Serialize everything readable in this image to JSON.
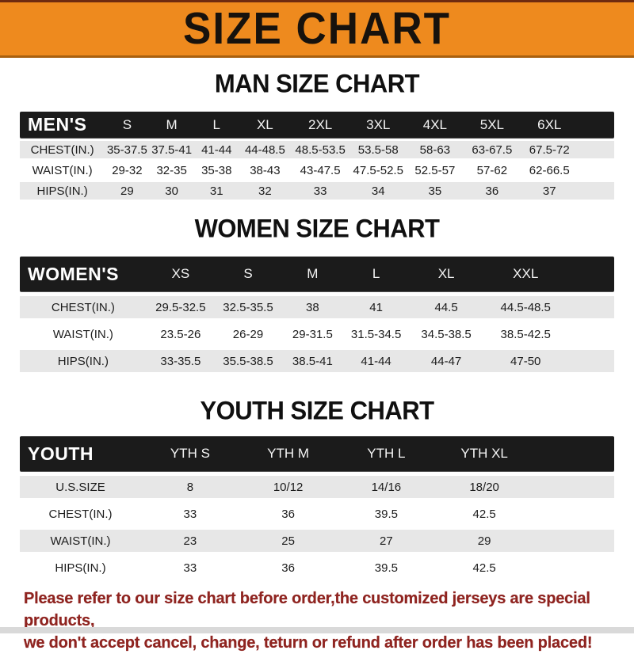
{
  "header": {
    "title": "SIZE CHART"
  },
  "colors": {
    "accent": "#EE8A1E",
    "band": "#1B1B1B",
    "row_gray": "#E7E7E7",
    "footer_red": "#8F2420"
  },
  "tables": [
    {
      "title": "MAN SIZE CHART",
      "band_label": "MEN'S",
      "columns": [
        "S",
        "M",
        "L",
        "XL",
        "2XL",
        "3XL",
        "4XL",
        "5XL",
        "6XL"
      ],
      "rows": [
        {
          "label": "CHEST(IN.)",
          "values": [
            "35-37.5",
            "37.5-41",
            "41-44",
            "44-48.5",
            "48.5-53.5",
            "53.5-58",
            "58-63",
            "63-67.5",
            "67.5-72"
          ]
        },
        {
          "label": "WAIST(IN.)",
          "values": [
            "29-32",
            "32-35",
            "35-38",
            "38-43",
            "43-47.5",
            "47.5-52.5",
            "52.5-57",
            "57-62",
            "62-66.5"
          ]
        },
        {
          "label": "HIPS(IN.)",
          "values": [
            "29",
            "30",
            "31",
            "32",
            "33",
            "34",
            "35",
            "36",
            "37"
          ]
        }
      ]
    },
    {
      "title": "WOMEN SIZE CHART",
      "band_label": "WOMEN'S",
      "columns": [
        "XS",
        "S",
        "M",
        "L",
        "XL",
        "XXL"
      ],
      "rows": [
        {
          "label": "CHEST(IN.)",
          "values": [
            "29.5-32.5",
            "32.5-35.5",
            "38",
            "41",
            "44.5",
            "44.5-48.5"
          ]
        },
        {
          "label": "WAIST(IN.)",
          "values": [
            "23.5-26",
            "26-29",
            "29-31.5",
            "31.5-34.5",
            "34.5-38.5",
            "38.5-42.5"
          ]
        },
        {
          "label": "HIPS(IN.)",
          "values": [
            "33-35.5",
            "35.5-38.5",
            "38.5-41",
            "41-44",
            "44-47",
            "47-50"
          ]
        }
      ]
    },
    {
      "title": "YOUTH SIZE CHART",
      "band_label": "YOUTH",
      "columns": [
        "YTH S",
        "YTH M",
        "YTH L",
        "YTH XL"
      ],
      "rows": [
        {
          "label": "U.S.SIZE",
          "values": [
            "8",
            "10/12",
            "14/16",
            "18/20"
          ]
        },
        {
          "label": "CHEST(IN.)",
          "values": [
            "33",
            "36",
            "39.5",
            "42.5"
          ]
        },
        {
          "label": "WAIST(IN.)",
          "values": [
            "23",
            "25",
            "27",
            "29"
          ]
        },
        {
          "label": "HIPS(IN.)",
          "values": [
            "33",
            "36",
            "39.5",
            "42.5"
          ]
        }
      ]
    }
  ],
  "footer": {
    "line1": "Please refer to our size chart before order,the customized jerseys are special products,",
    "line2": "we don't accept cancel, change, teturn or refund after order has been placed!"
  }
}
